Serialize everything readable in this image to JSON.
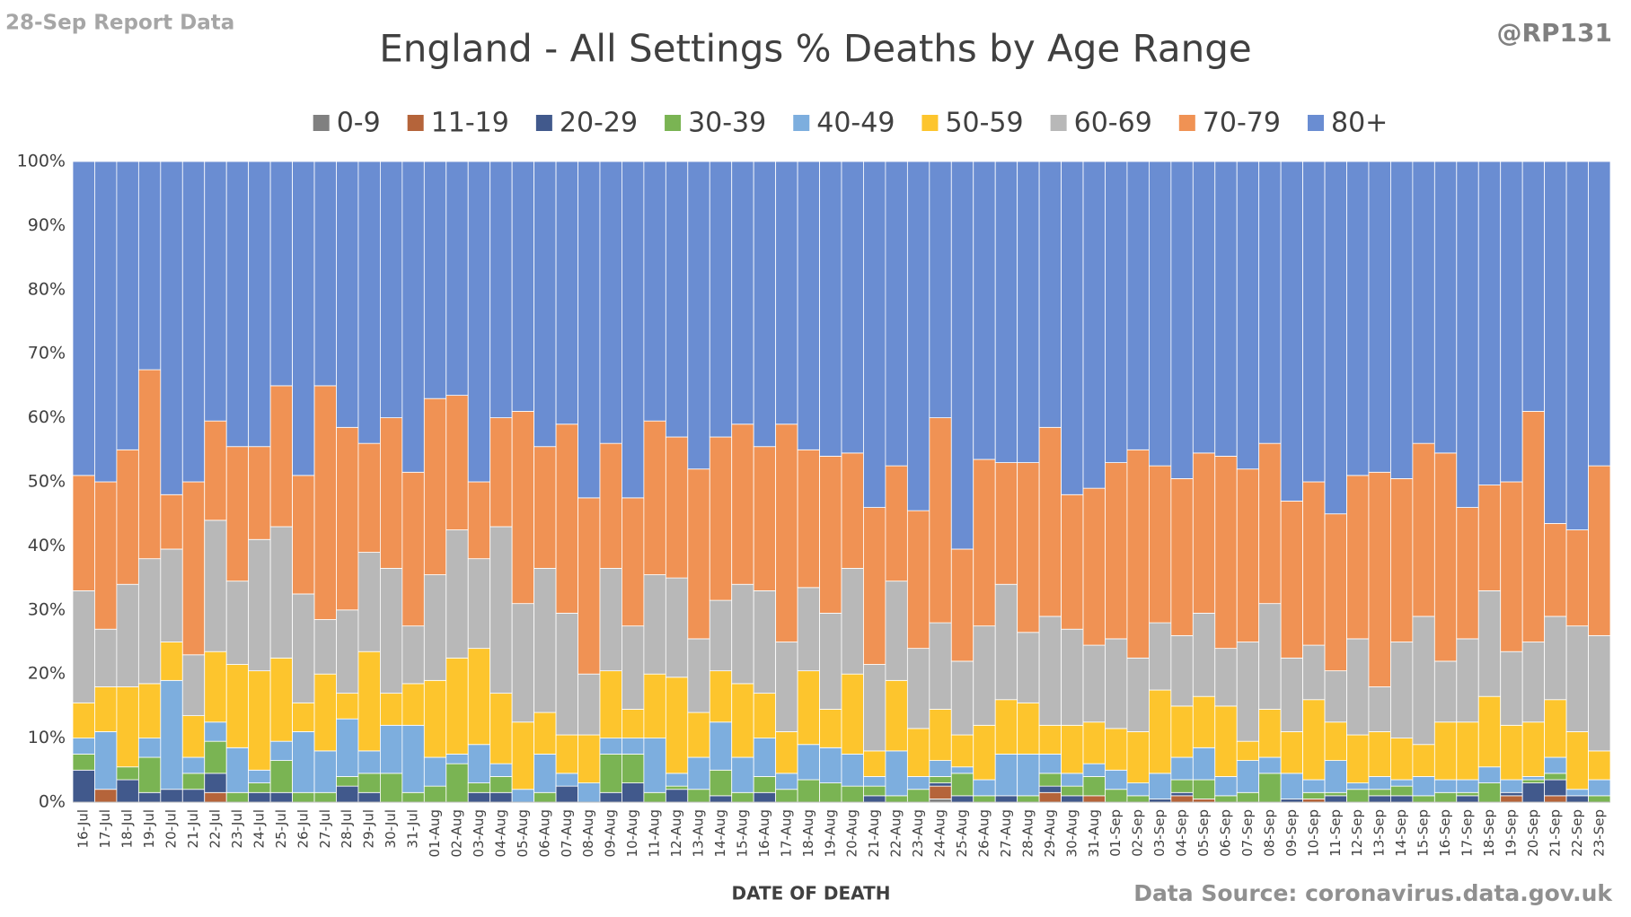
{
  "chart_data": {
    "type": "stacked_bar",
    "title": "England - All Settings % Deaths by Age Range",
    "subtitle": "28-Sep Report Data",
    "author": "@RP131",
    "xlabel": "DATE OF DEATH",
    "source": "Data Source: coronavirus.data.gov.uk",
    "legend": "top",
    "grid": true,
    "ylim": [
      0,
      100
    ],
    "yticks": [
      {
        "value": 0,
        "label": "0%"
      },
      {
        "value": 10,
        "label": "10%"
      },
      {
        "value": 20,
        "label": "20%"
      },
      {
        "value": 30,
        "label": "30%"
      },
      {
        "value": 40,
        "label": "40%"
      },
      {
        "value": 50,
        "label": "50%"
      },
      {
        "value": 60,
        "label": "60%"
      },
      {
        "value": 70,
        "label": "70%"
      },
      {
        "value": 80,
        "label": "80%"
      },
      {
        "value": 90,
        "label": "90%"
      },
      {
        "value": 100,
        "label": "100%"
      }
    ],
    "categories": [
      "16-Jul",
      "17-Jul",
      "18-Jul",
      "19-Jul",
      "20-Jul",
      "21-Jul",
      "22-Jul",
      "23-Jul",
      "24-Jul",
      "25-Jul",
      "26-Jul",
      "27-Jul",
      "28-Jul",
      "29-Jul",
      "30-Jul",
      "31-Jul",
      "01-Aug",
      "02-Aug",
      "03-Aug",
      "04-Aug",
      "05-Aug",
      "06-Aug",
      "07-Aug",
      "08-Aug",
      "09-Aug",
      "10-Aug",
      "11-Aug",
      "12-Aug",
      "13-Aug",
      "14-Aug",
      "15-Aug",
      "16-Aug",
      "17-Aug",
      "18-Aug",
      "19-Aug",
      "20-Aug",
      "21-Aug",
      "22-Aug",
      "23-Aug",
      "24-Aug",
      "25-Aug",
      "26-Aug",
      "27-Aug",
      "28-Aug",
      "29-Aug",
      "30-Aug",
      "31-Aug",
      "01-Sep",
      "02-Sep",
      "03-Sep",
      "04-Sep",
      "05-Sep",
      "06-Sep",
      "07-Sep",
      "08-Sep",
      "09-Sep",
      "10-Sep",
      "11-Sep",
      "12-Sep",
      "13-Sep",
      "14-Sep",
      "15-Sep",
      "16-Sep",
      "17-Sep",
      "18-Sep",
      "19-Sep",
      "20-Sep",
      "21-Sep",
      "22-Sep",
      "23-Sep"
    ],
    "series": [
      {
        "name": "0-9",
        "color": "#808080",
        "values": [
          0,
          0,
          0,
          0,
          0,
          0,
          0,
          0,
          0,
          0,
          0,
          0,
          0,
          0,
          0,
          0,
          0,
          0,
          0,
          0,
          0,
          0,
          0,
          0,
          0,
          0,
          0,
          0,
          0,
          0,
          0,
          0,
          0,
          0,
          0,
          0,
          0,
          0,
          0,
          0.5,
          0,
          0,
          0,
          0,
          0,
          0,
          0,
          0,
          0,
          0,
          0,
          0,
          0,
          0,
          0,
          0,
          0,
          0,
          0,
          0,
          0,
          0,
          0,
          0,
          0,
          0,
          0,
          0,
          0,
          0
        ]
      },
      {
        "name": "11-19",
        "color": "#b5643a",
        "values": [
          0,
          2,
          0,
          0,
          0,
          0,
          1.5,
          0,
          0,
          0,
          0,
          0,
          0,
          0,
          0,
          0,
          0,
          0,
          0,
          0,
          0,
          0,
          0,
          0,
          0,
          0,
          0,
          0,
          0,
          0,
          0,
          0,
          0,
          0,
          0,
          0,
          0,
          0,
          0,
          2,
          0,
          0,
          0,
          0,
          1.5,
          0,
          1,
          0,
          0,
          0,
          1,
          0.5,
          0,
          0,
          0,
          0,
          0.5,
          0,
          0,
          0,
          0,
          0,
          0,
          0,
          0,
          1,
          0,
          1,
          0,
          0
        ]
      },
      {
        "name": "20-29",
        "color": "#41598c",
        "values": [
          5,
          0,
          3.5,
          1.5,
          2,
          2,
          3,
          0,
          1.5,
          1.5,
          0,
          0,
          2.5,
          1.5,
          0,
          0,
          0,
          0,
          1.5,
          1.5,
          0,
          0,
          2.5,
          0,
          1.5,
          3,
          0,
          2,
          0,
          1,
          0,
          1.5,
          0,
          0,
          0,
          0,
          1,
          0,
          0,
          0.5,
          1,
          0,
          1,
          0,
          1,
          1,
          0,
          0,
          0,
          0.5,
          0.5,
          0,
          0,
          0,
          0,
          0.5,
          0,
          1,
          0,
          1,
          1,
          0,
          0,
          1,
          0,
          0.5,
          3,
          2.5,
          1,
          0
        ]
      },
      {
        "name": "30-39",
        "color": "#7ab453",
        "values": [
          2.5,
          0,
          2,
          5.5,
          0,
          2.5,
          5,
          1.5,
          1.5,
          5,
          1.5,
          1.5,
          1.5,
          3,
          4.5,
          1.5,
          2.5,
          6,
          1.5,
          2.5,
          0,
          1.5,
          0,
          0,
          6,
          4.5,
          1.5,
          0.5,
          2,
          4,
          1.5,
          2.5,
          2,
          3.5,
          3,
          2.5,
          1.5,
          1,
          2,
          1,
          3.5,
          1,
          0,
          1,
          2,
          1.5,
          3,
          2,
          1,
          0,
          2,
          3,
          1,
          1.5,
          4.5,
          0,
          1,
          0.5,
          2,
          1,
          1.5,
          1,
          1.5,
          0.5,
          3,
          0,
          0.5,
          1,
          0,
          1
        ]
      },
      {
        "name": "40-49",
        "color": "#7daede",
        "values": [
          2.5,
          9,
          0,
          3,
          17,
          2.5,
          3,
          7,
          2,
          3,
          9.5,
          6.5,
          9,
          3.5,
          7.5,
          10.5,
          4.5,
          1.5,
          6,
          2,
          2,
          6,
          2,
          3,
          2.5,
          2.5,
          8.5,
          2,
          5,
          7.5,
          5.5,
          6,
          2.5,
          5.5,
          5.5,
          5,
          1.5,
          7,
          2,
          2.5,
          1,
          2.5,
          6.5,
          6.5,
          3,
          2,
          2,
          3,
          2,
          4,
          3.5,
          5,
          3,
          5,
          2.5,
          4,
          2,
          5,
          1,
          2,
          1,
          3,
          2,
          2,
          2.5,
          2,
          0.5,
          2.5,
          1,
          2.5
        ]
      },
      {
        "name": "50-59",
        "color": "#fdc52d",
        "values": [
          5.5,
          7,
          12.5,
          8.5,
          6,
          6.5,
          11,
          13,
          15.5,
          13,
          4.5,
          12,
          4,
          15.5,
          5,
          6.5,
          12,
          15,
          15,
          11,
          10.5,
          6.5,
          6,
          7.5,
          10.5,
          4.5,
          10,
          15,
          7,
          8,
          11.5,
          7,
          6.5,
          11.5,
          6,
          12.5,
          4,
          11,
          7.5,
          8,
          5,
          8.5,
          8.5,
          8,
          4.5,
          7.5,
          6.5,
          6.5,
          8,
          13,
          8,
          8,
          11,
          3,
          7.5,
          6.5,
          12.5,
          6,
          7.5,
          7,
          6.5,
          5,
          9,
          9,
          11,
          8.5,
          8.5,
          9,
          9,
          4.5
        ]
      },
      {
        "name": "60-69",
        "color": "#b8b8b8",
        "values": [
          17.5,
          9,
          16,
          19.5,
          14.5,
          9.5,
          20.5,
          13,
          20.5,
          20.5,
          17,
          8.5,
          13,
          15.5,
          19.5,
          9,
          16.5,
          20,
          14,
          26,
          18.5,
          22.5,
          19,
          9.5,
          16,
          13,
          15.5,
          15.5,
          11.5,
          11,
          15.5,
          16,
          14,
          13,
          15,
          16.5,
          13.5,
          15.5,
          12.5,
          13.5,
          11.5,
          15.5,
          18,
          11,
          17,
          15,
          12,
          14,
          11.5,
          10.5,
          11,
          13,
          9,
          15.5,
          16.5,
          11.5,
          8.5,
          8,
          15,
          7,
          15,
          20,
          9.5,
          13,
          16.5,
          11.5,
          12.5,
          13,
          16.5,
          18
        ]
      },
      {
        "name": "70-79",
        "color": "#f09254",
        "values": [
          18,
          23,
          21,
          29.5,
          8.5,
          27,
          15.5,
          21,
          14.5,
          22,
          18.5,
          36.5,
          28.5,
          17,
          23.5,
          24,
          27.5,
          21,
          12,
          17,
          30,
          19,
          29.5,
          27.5,
          19.5,
          20,
          24,
          22,
          26.5,
          25.5,
          25,
          22.5,
          34,
          21.5,
          24.5,
          18,
          24.5,
          18,
          21.5,
          32,
          17.5,
          26,
          19,
          26.5,
          29.5,
          21,
          24.5,
          27.5,
          32.5,
          24.5,
          24.5,
          25,
          30,
          27,
          25,
          24.5,
          25.5,
          24.5,
          25.5,
          33.5,
          25.5,
          27,
          32.5,
          20.5,
          16.5,
          26.5,
          36,
          14.5,
          15,
          26.5
        ]
      },
      {
        "name": "80+",
        "color": "#6a8dd2",
        "values": [
          49,
          50,
          45,
          32.5,
          52,
          50,
          40.5,
          44.5,
          44.5,
          35,
          49,
          35,
          41.5,
          44,
          40,
          48.5,
          37,
          36.5,
          50,
          40,
          39,
          44.5,
          41,
          52.5,
          44,
          52.5,
          40.5,
          43,
          48,
          43,
          41,
          44.5,
          41,
          45,
          46,
          45.5,
          54,
          47.5,
          54.5,
          40,
          60.5,
          46.5,
          47,
          47,
          41.5,
          52,
          51,
          47,
          45,
          47.5,
          49.5,
          45.5,
          46,
          48,
          44,
          53,
          50,
          55,
          49,
          48.5,
          49.5,
          44,
          45.5,
          54,
          50.5,
          50,
          39,
          56.5,
          57.5,
          47.5
        ]
      }
    ]
  }
}
